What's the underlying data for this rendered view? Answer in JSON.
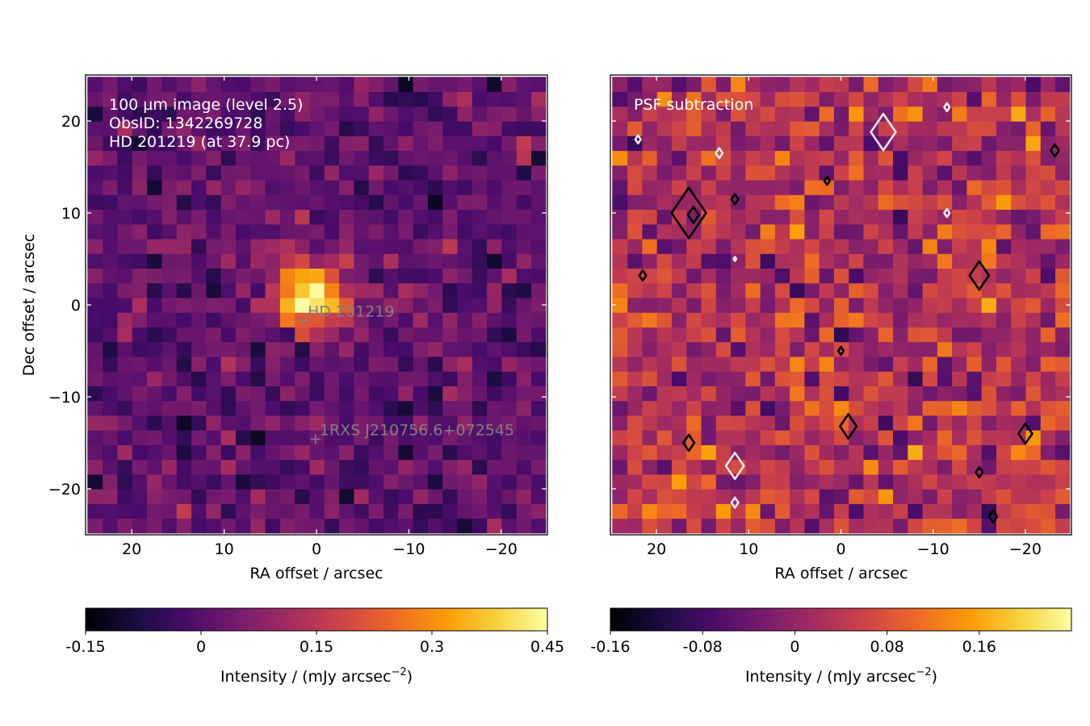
{
  "colormap": [
    "#000004",
    "#1b0c41",
    "#4a0c6b",
    "#781c6d",
    "#a52c60",
    "#cf4446",
    "#ed6925",
    "#fb9b06",
    "#f7d13d",
    "#fcffa4"
  ],
  "annotation_color": "#808080",
  "chart_data": [
    {
      "type": "heatmap",
      "title": "",
      "xlabel": "RA offset / arcsec",
      "ylabel": "Dec offset / arcsec",
      "xlim": [
        25,
        -25
      ],
      "ylim": [
        -25,
        25
      ],
      "xticks": [
        20,
        10,
        0,
        -10,
        -20
      ],
      "yticks": [
        20,
        10,
        0,
        -10,
        -20
      ],
      "tick_labels_x": [
        "20",
        "10",
        "0",
        "−10",
        "−20"
      ],
      "tick_labels_y": [
        "20",
        "10",
        "0",
        "−10",
        "−20"
      ],
      "grid": false,
      "pixel_size_arcsec": 1.6,
      "grid_size": 31,
      "annotation_lines": [
        "100 µm image (level 2.5)",
        "ObsID: 1342269728",
        "HD 201219 (at 37.9 pc)"
      ],
      "markers": [
        {
          "label": "HD 201219",
          "ra": 1.4,
          "dec": -1.7
        },
        {
          "label": "1RXS J210756.6+072545",
          "ra": 0.1,
          "dec": -14.6
        }
      ],
      "peak": {
        "ra": 0.5,
        "dec": 1.0,
        "value": 0.45
      },
      "noise_rms": 0.05,
      "colorbar": {
        "label": "Intensity / (mJy arcsec",
        "label_sup": "−2",
        "label_end": ")",
        "min": -0.15,
        "max": 0.45,
        "ticks": [
          -0.15,
          0,
          0.15,
          0.3,
          0.45
        ],
        "tick_labels": [
          "-0.15",
          "0",
          "0.15",
          "0.3",
          "0.45"
        ]
      }
    },
    {
      "type": "heatmap",
      "title": "",
      "xlabel": "RA offset / arcsec",
      "ylabel": "",
      "xlim": [
        25,
        -25
      ],
      "ylim": [
        -25,
        25
      ],
      "xticks": [
        20,
        10,
        0,
        -10,
        -20
      ],
      "tick_labels_x": [
        "20",
        "10",
        "0",
        "−10",
        "−20"
      ],
      "grid": false,
      "pixel_size_arcsec": 1.6,
      "grid_size": 31,
      "annotation_lines": [
        "PSF subtraction"
      ],
      "noise_rms": 0.05,
      "positive_contours": [
        {
          "ra": 16.5,
          "dec": 10.0,
          "size": 2.5
        },
        {
          "ra": 16.0,
          "dec": 9.8,
          "size": 0.8
        },
        {
          "ra": -15.0,
          "dec": 3.2,
          "size": 1.4
        },
        {
          "ra": 16.5,
          "dec": -15.0,
          "size": 0.8
        },
        {
          "ra": -20.0,
          "dec": -14.0,
          "size": 1.0
        },
        {
          "ra": -0.8,
          "dec": -13.2,
          "size": 1.2
        },
        {
          "ra": 21.5,
          "dec": 3.2,
          "size": 0.5
        },
        {
          "ra": 11.5,
          "dec": 11.5,
          "size": 0.5
        },
        {
          "ra": -15.0,
          "dec": -18.2,
          "size": 0.5
        },
        {
          "ra": -16.5,
          "dec": -23.0,
          "size": 0.6
        },
        {
          "ra": -23.2,
          "dec": 16.8,
          "size": 0.6
        },
        {
          "ra": 1.5,
          "dec": 13.5,
          "size": 0.4
        },
        {
          "ra": 0.0,
          "dec": -5.0,
          "size": 0.4
        }
      ],
      "negative_contours": [
        {
          "ra": -4.6,
          "dec": 18.8,
          "size": 1.8
        },
        {
          "ra": 13.2,
          "dec": 16.5,
          "size": 0.5
        },
        {
          "ra": -11.5,
          "dec": 10.0,
          "size": 0.4
        },
        {
          "ra": 11.5,
          "dec": -17.5,
          "size": 1.3
        },
        {
          "ra": 11.5,
          "dec": -21.5,
          "size": 0.5
        },
        {
          "ra": -11.5,
          "dec": 21.5,
          "size": 0.4
        },
        {
          "ra": 22.0,
          "dec": 18.0,
          "size": 0.4
        },
        {
          "ra": 11.5,
          "dec": 5.0,
          "size": 0.2
        }
      ],
      "colorbar": {
        "label": "Intensity / (mJy arcsec",
        "label_sup": "−2",
        "label_end": ")",
        "min": -0.16,
        "max": 0.24,
        "ticks": [
          -0.16,
          -0.08,
          0,
          0.08,
          0.16
        ],
        "tick_labels": [
          "-0.16",
          "-0.08",
          "0",
          "0.08",
          "0.16"
        ]
      }
    }
  ]
}
